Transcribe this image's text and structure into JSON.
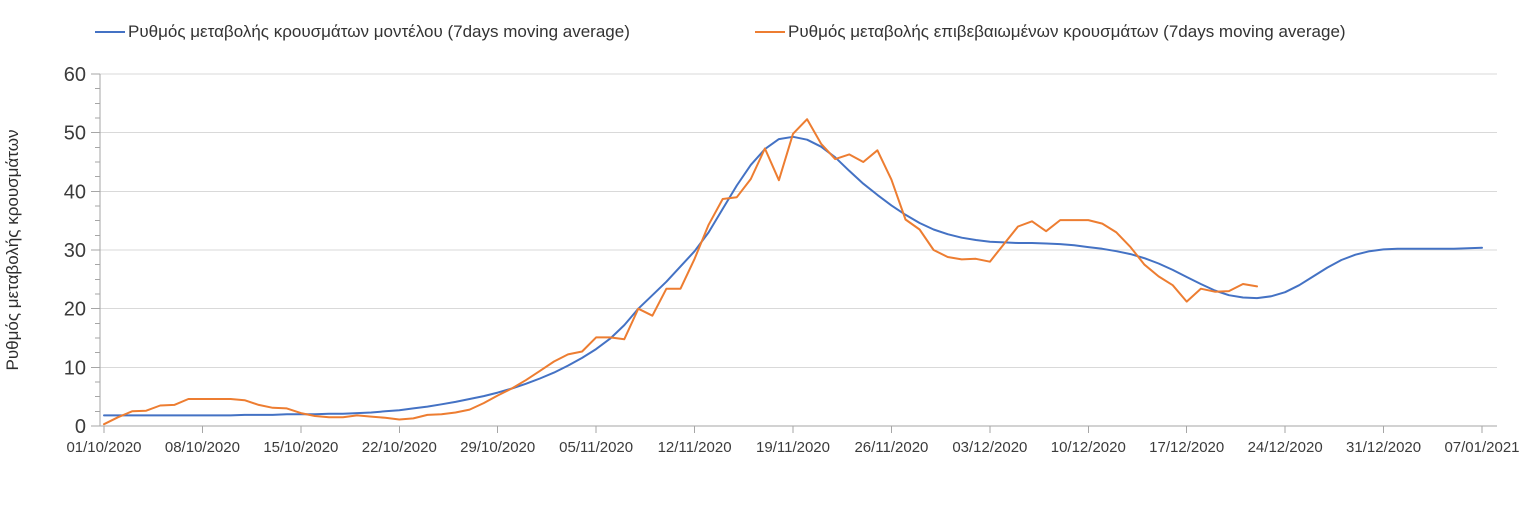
{
  "chart_data": {
    "type": "line",
    "title": "",
    "xlabel": "",
    "ylabel": "Ρυθμός μεταβολής κρουσμάτων",
    "ylim": [
      0,
      60
    ],
    "y_ticks": [
      0,
      10,
      20,
      30,
      40,
      50,
      60
    ],
    "y_minor_tick_step": 2.5,
    "grid": "horizontal-major-only",
    "legend_position": "top",
    "x_total_days": 98,
    "x_tick_day_index": [
      0,
      7,
      14,
      21,
      28,
      35,
      42,
      49,
      56,
      63,
      70,
      77,
      84,
      91,
      98
    ],
    "x_tick_labels": [
      "01/10/2020",
      "08/10/2020",
      "15/10/2020",
      "22/10/2020",
      "29/10/2020",
      "05/11/2020",
      "12/11/2020",
      "19/11/2020",
      "26/11/2020",
      "03/12/2020",
      "10/12/2020",
      "17/12/2020",
      "24/12/2020",
      "31/12/2020",
      "07/01/2021"
    ],
    "series": [
      {
        "name": "Ρυθμός μεταβολής κρουσμάτων μοντέλου (7days moving average)",
        "color": "#4472c4",
        "x_start_day": 0,
        "values": [
          1.8,
          1.8,
          1.8,
          1.8,
          1.8,
          1.8,
          1.8,
          1.8,
          1.8,
          1.8,
          1.9,
          1.9,
          1.9,
          2.0,
          2.0,
          2.0,
          2.1,
          2.1,
          2.2,
          2.3,
          2.5,
          2.7,
          3.0,
          3.3,
          3.7,
          4.1,
          4.6,
          5.1,
          5.7,
          6.4,
          7.2,
          8.1,
          9.1,
          10.3,
          11.6,
          13.1,
          14.9,
          17.2,
          20.0,
          22.3,
          24.6,
          27.2,
          29.8,
          33.0,
          37.0,
          41.0,
          44.5,
          47.2,
          48.9,
          49.3,
          48.8,
          47.6,
          45.8,
          43.5,
          41.3,
          39.4,
          37.6,
          36.0,
          34.6,
          33.5,
          32.7,
          32.1,
          31.7,
          31.4,
          31.3,
          31.2,
          31.2,
          31.1,
          31.0,
          30.8,
          30.5,
          30.2,
          29.8,
          29.3,
          28.6,
          27.7,
          26.6,
          25.4,
          24.2,
          23.1,
          22.3,
          21.9,
          21.8,
          22.1,
          22.8,
          24.0,
          25.5,
          27.0,
          28.3,
          29.2,
          29.8,
          30.1,
          30.2,
          30.2,
          30.2,
          30.2,
          30.2,
          30.3,
          30.4
        ]
      },
      {
        "name": "Ρυθμός μεταβολής επιβεβαιωμένων κρουσμάτων (7days moving average)",
        "color": "#ed7d31",
        "x_start_day": 0,
        "values": [
          0.3,
          1.5,
          2.5,
          2.6,
          3.5,
          3.6,
          4.6,
          4.6,
          4.6,
          4.6,
          4.4,
          3.6,
          3.1,
          3.0,
          2.2,
          1.7,
          1.5,
          1.5,
          1.8,
          1.6,
          1.4,
          1.1,
          1.3,
          1.9,
          2.0,
          2.3,
          2.8,
          3.9,
          5.2,
          6.4,
          7.8,
          9.4,
          11.0,
          12.2,
          12.7,
          15.1,
          15.1,
          14.8,
          20.0,
          18.8,
          23.4,
          23.4,
          28.5,
          34.3,
          38.7,
          39.0,
          42.1,
          47.3,
          41.9,
          49.8,
          52.3,
          48.1,
          45.5,
          46.3,
          45.0,
          47.0,
          42.0,
          35.2,
          33.5,
          30.0,
          28.8,
          28.4,
          28.5,
          28.0,
          31.0,
          34.0,
          34.9,
          33.2,
          35.1,
          35.1,
          35.1,
          34.5,
          33.0,
          30.5,
          27.5,
          25.5,
          24.0,
          21.2,
          23.4,
          22.9,
          23.0,
          24.2,
          23.8
        ]
      }
    ]
  }
}
